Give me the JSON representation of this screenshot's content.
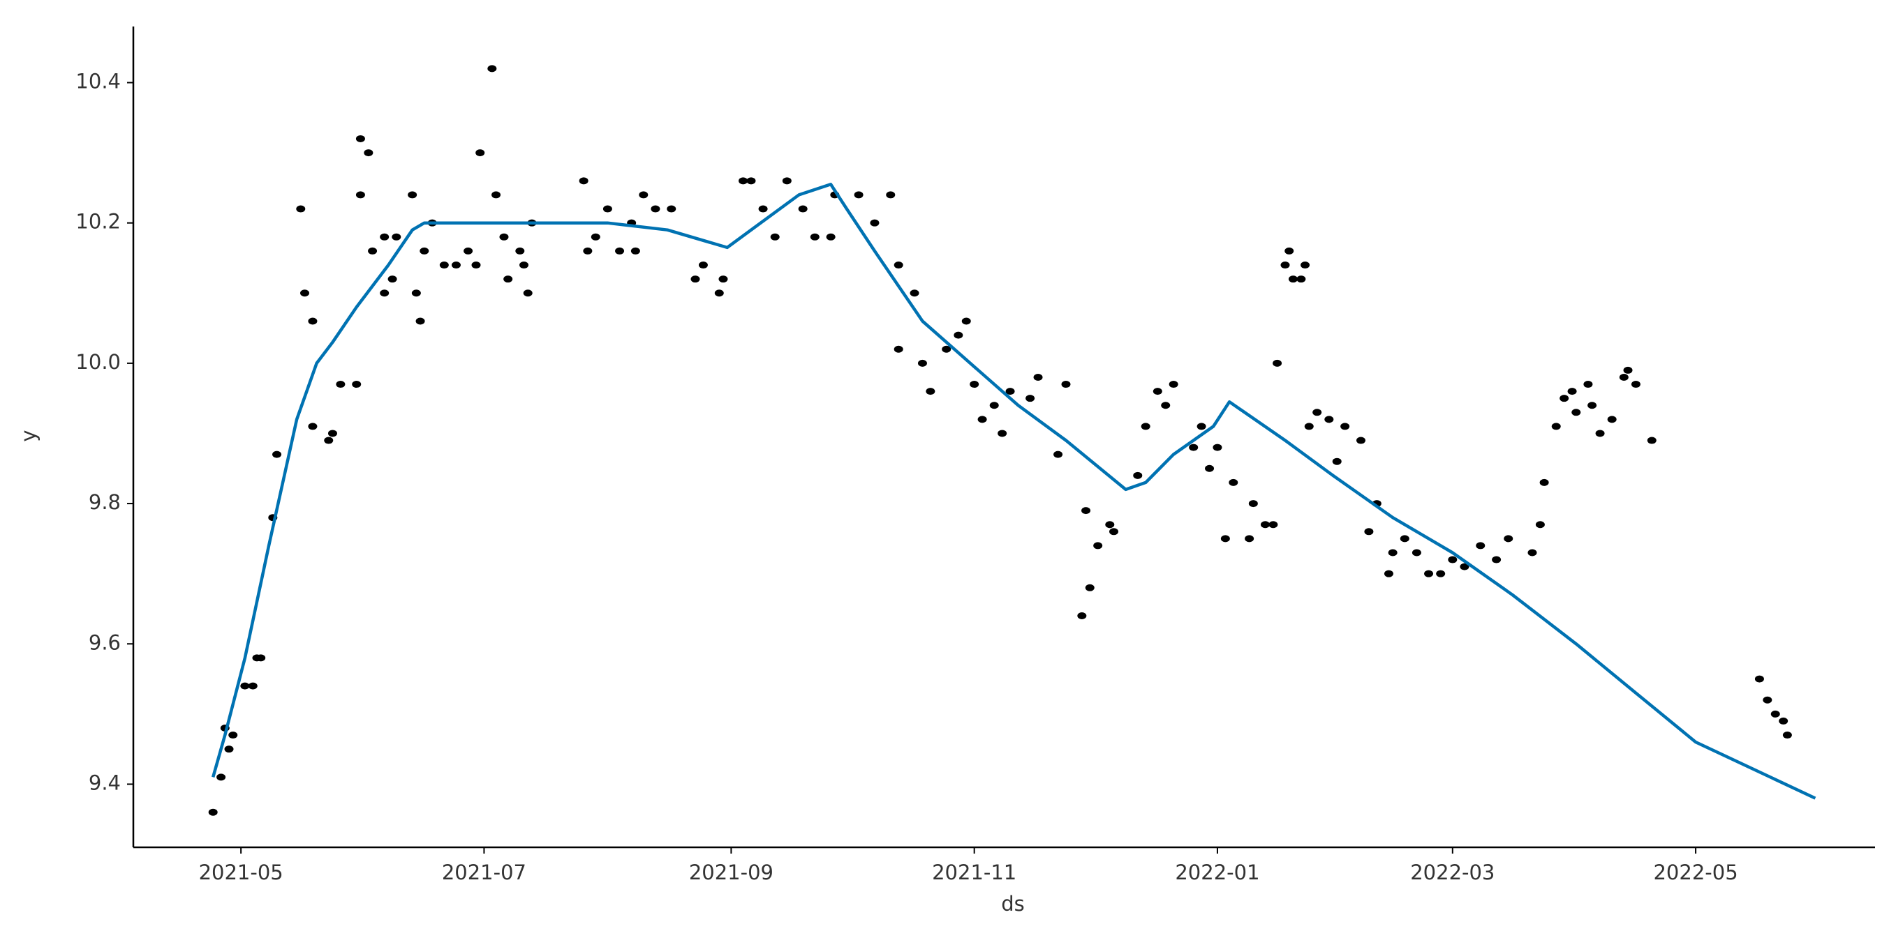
{
  "chart_data": {
    "type": "scatter",
    "x_label": "ds",
    "y_label": "y",
    "xlim": [
      93,
      530
    ],
    "xticks": [
      {
        "value": 120,
        "label": "2021-05"
      },
      {
        "value": 181,
        "label": "2021-07"
      },
      {
        "value": 243,
        "label": "2021-09"
      },
      {
        "value": 304,
        "label": "2021-11"
      },
      {
        "value": 365,
        "label": "2022-01"
      },
      {
        "value": 424,
        "label": "2022-03"
      },
      {
        "value": 485,
        "label": "2022-05"
      }
    ],
    "ylim": [
      9.31,
      10.48
    ],
    "yticks": [
      9.4,
      9.6,
      9.8,
      {
        "value": 10,
        "label": "10.0"
      },
      10.2,
      10.4
    ],
    "grid": false,
    "series": [
      {
        "type": "scatter",
        "color": "#000000",
        "x": [
          113,
          115,
          116,
          117,
          118,
          121,
          123,
          124,
          125,
          128,
          129,
          135,
          136,
          138,
          138,
          142,
          143,
          145,
          149,
          150,
          150,
          152,
          153,
          156,
          156,
          158,
          159,
          163,
          164,
          165,
          166,
          168,
          171,
          174,
          177,
          179,
          180,
          183,
          184,
          186,
          187,
          190,
          191,
          192,
          193,
          206,
          207,
          209,
          212,
          215,
          218,
          219,
          221,
          224,
          228,
          234,
          236,
          240,
          241,
          246,
          248,
          251,
          254,
          257,
          261,
          264,
          268,
          269,
          275,
          279,
          283,
          285,
          285,
          289,
          291,
          293,
          297,
          300,
          302,
          304,
          306,
          309,
          311,
          313,
          318,
          320,
          325,
          327,
          331,
          332,
          333,
          335,
          338,
          339,
          345,
          347,
          350,
          352,
          354,
          359,
          361,
          363,
          365,
          367,
          369,
          373,
          374,
          377,
          379,
          380,
          382,
          383,
          384,
          386,
          387,
          388,
          390,
          393,
          395,
          397,
          401,
          403,
          405,
          408,
          409,
          412,
          415,
          418,
          421,
          424,
          427,
          431,
          435,
          438,
          444,
          446,
          447,
          450,
          452,
          454,
          455,
          458,
          459,
          461,
          464,
          467,
          468,
          470,
          474,
          501,
          503,
          505,
          507,
          508
        ],
        "values": [
          9.36,
          9.41,
          9.48,
          9.45,
          9.47,
          9.54,
          9.54,
          9.58,
          9.58,
          9.78,
          9.87,
          10.22,
          10.1,
          10.06,
          9.91,
          9.89,
          9.9,
          9.97,
          9.97,
          10.24,
          10.32,
          10.3,
          10.16,
          10.1,
          10.18,
          10.12,
          10.18,
          10.24,
          10.1,
          10.06,
          10.16,
          10.2,
          10.14,
          10.14,
          10.16,
          10.14,
          10.3,
          10.42,
          10.24,
          10.18,
          10.12,
          10.16,
          10.14,
          10.1,
          10.2,
          10.26,
          10.16,
          10.18,
          10.22,
          10.16,
          10.2,
          10.16,
          10.24,
          10.22,
          10.22,
          10.12,
          10.14,
          10.1,
          10.12,
          10.26,
          10.26,
          10.22,
          10.18,
          10.26,
          10.22,
          10.18,
          10.18,
          10.24,
          10.24,
          10.2,
          10.24,
          10.14,
          10.02,
          10.1,
          10.0,
          9.96,
          10.02,
          10.04,
          10.06,
          9.97,
          9.92,
          9.94,
          9.9,
          9.96,
          9.95,
          9.98,
          9.87,
          9.97,
          9.64,
          9.79,
          9.68,
          9.74,
          9.77,
          9.76,
          9.84,
          9.91,
          9.96,
          9.94,
          9.97,
          9.88,
          9.91,
          9.85,
          9.88,
          9.75,
          9.83,
          9.75,
          9.8,
          9.77,
          9.77,
          10.0,
          10.14,
          10.16,
          10.12,
          10.12,
          10.14,
          9.91,
          9.93,
          9.92,
          9.86,
          9.91,
          9.89,
          9.76,
          9.8,
          9.7,
          9.73,
          9.75,
          9.73,
          9.7,
          9.7,
          9.72,
          9.71,
          9.74,
          9.72,
          9.75,
          9.73,
          9.77,
          9.83,
          9.91,
          9.95,
          9.96,
          9.93,
          9.97,
          9.94,
          9.9,
          9.92,
          9.98,
          9.99,
          9.97,
          9.89,
          9.55,
          9.52,
          9.5,
          9.49,
          9.47
        ]
      },
      {
        "type": "line",
        "color": "#0072b2",
        "x": [
          113,
          116,
          121,
          127,
          134,
          139,
          143,
          149,
          157,
          163,
          166,
          181,
          197,
          212,
          227,
          242,
          248,
          260,
          268,
          272,
          279,
          291,
          303,
          315,
          327,
          342,
          347,
          354,
          364,
          368,
          382,
          394,
          409,
          424,
          439,
          455,
          470,
          485,
          515
        ],
        "values": [
          9.41,
          9.47,
          9.58,
          9.74,
          9.92,
          10.0,
          10.03,
          10.08,
          10.14,
          10.19,
          10.2,
          10.2,
          10.2,
          10.2,
          10.19,
          10.165,
          10.19,
          10.24,
          10.255,
          10.22,
          10.16,
          10.06,
          10.0,
          9.94,
          9.89,
          9.82,
          9.83,
          9.87,
          9.91,
          9.945,
          9.89,
          9.84,
          9.78,
          9.73,
          9.67,
          9.6,
          9.53,
          9.46,
          9.38
        ]
      }
    ]
  }
}
